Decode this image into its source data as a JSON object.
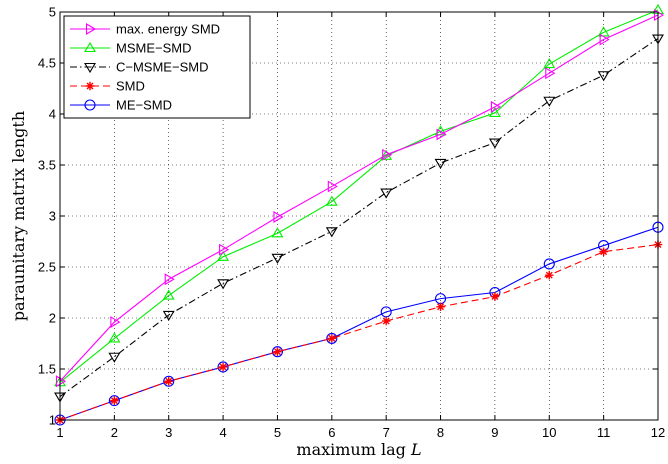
{
  "chart_data": {
    "type": "line",
    "xlabel": "maximum lag L",
    "xlabel_text": "maximum lag ",
    "xlabel_var": "L",
    "ylabel": "paraunitary matrix length",
    "xlim": [
      1,
      12
    ],
    "ylim": [
      1,
      5
    ],
    "xticks": [
      1,
      2,
      3,
      4,
      5,
      6,
      7,
      8,
      9,
      10,
      11,
      12
    ],
    "yticks": [
      1,
      1.5,
      2,
      2.5,
      3,
      3.5,
      4,
      4.5,
      5
    ],
    "grid": true,
    "legend_position": "top-left",
    "x": [
      1,
      2,
      3,
      4,
      5,
      6,
      7,
      8,
      9,
      10,
      11,
      12
    ],
    "series": [
      {
        "name": "max. energy SMD",
        "color": "#ff00ff",
        "marker": "triangle-right",
        "dash": "solid",
        "values": [
          1.38,
          1.96,
          2.38,
          2.67,
          2.99,
          3.29,
          3.6,
          3.8,
          4.07,
          4.4,
          4.73,
          4.97
        ]
      },
      {
        "name": "MSME−SMD",
        "color": "#00ee00",
        "marker": "triangle-up",
        "dash": "solid",
        "values": [
          1.37,
          1.8,
          2.22,
          2.6,
          2.83,
          3.14,
          3.59,
          3.83,
          4.01,
          4.49,
          4.8,
          5.02
        ]
      },
      {
        "name": "C−MSME−SMD",
        "color": "#000000",
        "marker": "triangle-down",
        "dash": "dashdot",
        "values": [
          1.23,
          1.62,
          2.03,
          2.34,
          2.59,
          2.85,
          3.23,
          3.52,
          3.72,
          4.13,
          4.38,
          4.74
        ]
      },
      {
        "name": "SMD",
        "color": "#ff0000",
        "marker": "asterisk",
        "dash": "dashed",
        "values": [
          1.0,
          1.19,
          1.38,
          1.52,
          1.67,
          1.8,
          1.97,
          2.11,
          2.21,
          2.42,
          2.65,
          2.72
        ]
      },
      {
        "name": "ME−SMD",
        "color": "#0000ff",
        "marker": "circle",
        "dash": "solid",
        "values": [
          1.0,
          1.19,
          1.38,
          1.52,
          1.67,
          1.8,
          2.06,
          2.19,
          2.25,
          2.53,
          2.71,
          2.89
        ]
      }
    ]
  }
}
